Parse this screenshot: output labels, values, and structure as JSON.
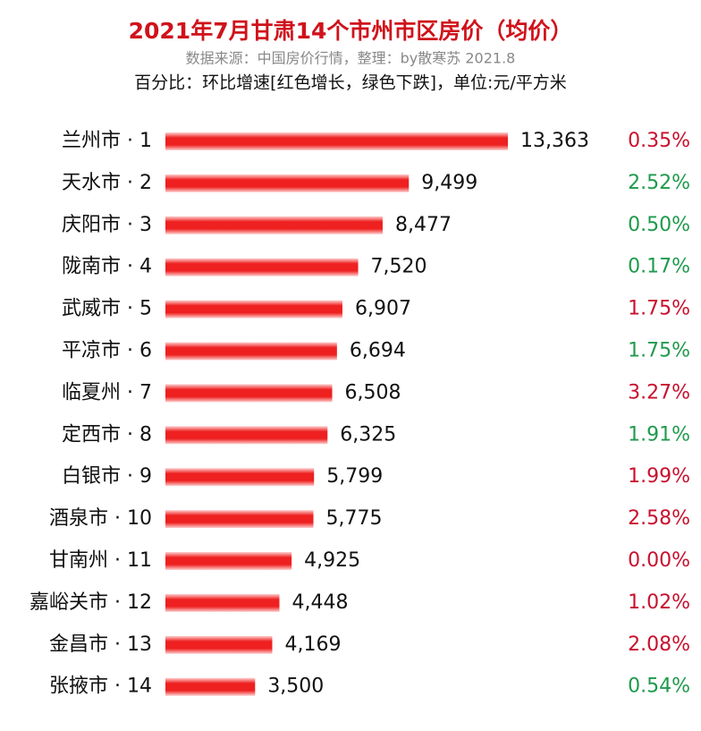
{
  "chart_data": {
    "type": "bar",
    "orientation": "horizontal",
    "title": "2021年7月甘肃14个市州市区房价（均价）",
    "subtitle": "数据来源：中国房价行情，整理：by散寒苏 2021.8",
    "note": "百分比：环比增速[红色增长，绿色下跌]，单位:元/平方米",
    "color": "#e8141c",
    "categories": [
      "兰州市 · 1",
      "天水市 · 2",
      "庆阳市 · 3",
      "陇南市 · 4",
      "武威市 · 5",
      "平凉市 · 6",
      "临夏州 · 7",
      "定西市 · 8",
      "白银市 · 9",
      "酒泉市 · 10",
      "甘南州 · 11",
      "嘉峪关市 · 12",
      "金昌市 · 13",
      "张掖市 · 14"
    ],
    "values": [
      13363,
      9499,
      8477,
      7520,
      6907,
      6694,
      6508,
      6325,
      5799,
      5775,
      4925,
      4448,
      4169,
      3500
    ],
    "value_labels": [
      "13,363",
      "9,499",
      "8,477",
      "7,520",
      "6,907",
      "6,694",
      "6,508",
      "6,325",
      "5,799",
      "5,775",
      "4,925",
      "4,448",
      "4,169",
      "3,500"
    ],
    "change": {
      "values": [
        0.35,
        2.52,
        0.5,
        0.17,
        1.75,
        1.75,
        3.27,
        1.91,
        1.99,
        2.58,
        0.0,
        1.02,
        2.08,
        0.54
      ],
      "value_labels": [
        "0.35%",
        "2.52%",
        "0.50%",
        "0.17%",
        "1.75%",
        "1.75%",
        "3.27%",
        "1.91%",
        "1.99%",
        "2.58%",
        "0.00%",
        "1.02%",
        "2.08%",
        "0.54%"
      ],
      "colors": [
        "#c8102e",
        "#1f9a4c",
        "#1f9a4c",
        "#1f9a4c",
        "#c8102e",
        "#1f9a4c",
        "#c8102e",
        "#1f9a4c",
        "#c8102e",
        "#c8102e",
        "#c8102e",
        "#c8102e",
        "#c8102e",
        "#1f9a4c"
      ]
    }
  }
}
